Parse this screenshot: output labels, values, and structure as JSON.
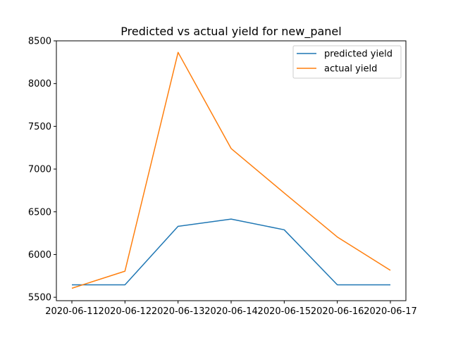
{
  "chart_data": {
    "type": "line",
    "title": "Predicted vs actual yield for new_panel",
    "xlabel": "",
    "ylabel": "",
    "x": [
      "2020-06-11",
      "2020-06-12",
      "2020-06-13",
      "2020-06-14",
      "2020-06-15",
      "2020-06-16",
      "2020-06-17"
    ],
    "ylim": [
      5460,
      8500
    ],
    "yticks": [
      5500,
      6000,
      6500,
      7000,
      7500,
      8000,
      8500
    ],
    "grid": false,
    "legend_position": "top-right",
    "series": [
      {
        "name": "predicted yield",
        "color": "#1f77b4",
        "values": [
          5645,
          5645,
          6330,
          6415,
          6290,
          5645,
          5645
        ]
      },
      {
        "name": "actual yield",
        "color": "#ff7f0e",
        "values": [
          5605,
          5805,
          8365,
          7240,
          6720,
          6205,
          5815
        ]
      }
    ]
  }
}
